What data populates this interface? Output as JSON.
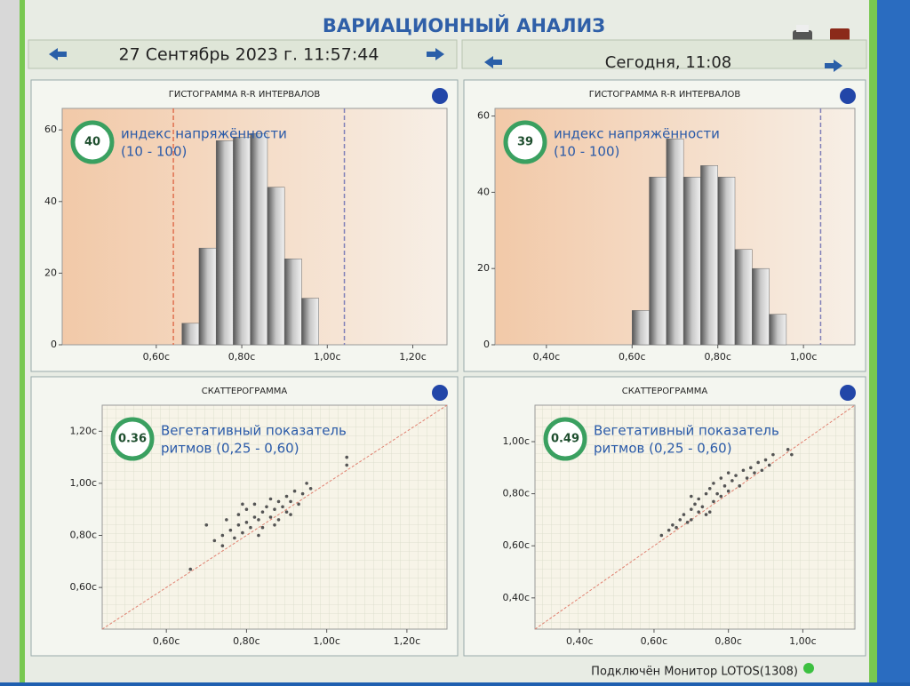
{
  "header": {
    "title": "ВАРИАЦИОННЫЙ АНАЛИЗ",
    "left_date": "27 Сентябрь 2023 г. 11:57:44",
    "right_date": "Сегодня, 11:08"
  },
  "status": "Подключён Монитор LOTOS(1308)",
  "chart_data": [
    {
      "type": "histogram",
      "title": "ГИСТОГРАММА R-R ИНТЕРВАЛОВ",
      "index": {
        "value": 40,
        "label": "индекс напряжённости",
        "range": "(10 - 100)"
      },
      "bins": [
        0.66,
        0.7,
        0.74,
        0.78,
        0.82,
        0.86,
        0.9,
        0.94,
        0.98
      ],
      "counts": [
        6,
        27,
        57,
        58,
        59,
        44,
        24,
        13
      ],
      "xlim": [
        0.38,
        1.28
      ],
      "ylim": [
        0,
        66
      ],
      "xticks": [
        {
          "value": 0.6,
          "label": "0,60с"
        },
        {
          "value": 0.8,
          "label": "0,80с"
        },
        {
          "value": 1.0,
          "label": "1,00с"
        },
        {
          "value": 1.2,
          "label": "1,20с"
        }
      ],
      "yticks": [
        0,
        20,
        40,
        60
      ],
      "reference_lines": [
        {
          "value": 0.64,
          "color": "#e07050"
        },
        {
          "value": 1.04,
          "color": "#8080b8"
        }
      ]
    },
    {
      "type": "histogram",
      "title": "ГИСТОГРАММА R-R ИНТЕРВАЛОВ",
      "index": {
        "value": 39,
        "label": "индекс напряжённости",
        "range": "(10 - 100)"
      },
      "bins": [
        0.6,
        0.64,
        0.68,
        0.72,
        0.76,
        0.8,
        0.84,
        0.88,
        0.92,
        0.96
      ],
      "counts": [
        9,
        44,
        54,
        44,
        47,
        44,
        25,
        20,
        8
      ],
      "xlim": [
        0.28,
        1.12
      ],
      "ylim": [
        0,
        62
      ],
      "xticks": [
        {
          "value": 0.4,
          "label": "0,40с"
        },
        {
          "value": 0.6,
          "label": "0,60с"
        },
        {
          "value": 0.8,
          "label": "0,80с"
        },
        {
          "value": 1.0,
          "label": "1,00с"
        }
      ],
      "yticks": [
        0,
        20,
        40,
        60
      ],
      "reference_lines": [
        {
          "value": 1.04,
          "color": "#8080b8"
        }
      ]
    },
    {
      "type": "scatter",
      "title": "СКАТТЕРОГРАММА",
      "index": {
        "value": 0.36,
        "label": "Вегетативный показатель",
        "range": "ритмов (0,25 - 0,60)"
      },
      "color": "#555555",
      "x": [
        0.7,
        0.72,
        0.74,
        0.75,
        0.76,
        0.77,
        0.78,
        0.78,
        0.79,
        0.8,
        0.8,
        0.81,
        0.82,
        0.82,
        0.83,
        0.84,
        0.84,
        0.85,
        0.86,
        0.86,
        0.87,
        0.88,
        0.88,
        0.89,
        0.9,
        0.9,
        0.91,
        0.92,
        0.93,
        0.94,
        0.95,
        0.96,
        0.74,
        0.79,
        0.83,
        0.87,
        0.91,
        0.66,
        1.05,
        1.05
      ],
      "values": [
        0.84,
        0.78,
        0.8,
        0.86,
        0.82,
        0.79,
        0.84,
        0.88,
        0.81,
        0.85,
        0.9,
        0.83,
        0.87,
        0.92,
        0.86,
        0.89,
        0.83,
        0.91,
        0.87,
        0.94,
        0.9,
        0.86,
        0.93,
        0.91,
        0.95,
        0.89,
        0.93,
        0.97,
        0.92,
        0.96,
        1.0,
        0.98,
        0.76,
        0.92,
        0.8,
        0.84,
        0.88,
        0.67,
        1.07,
        1.1
      ],
      "xlim": [
        0.44,
        1.3
      ],
      "ylim": [
        0.44,
        1.3
      ],
      "xticks": [
        {
          "value": 0.6,
          "label": "0,60с"
        },
        {
          "value": 0.8,
          "label": "0,80с"
        },
        {
          "value": 1.0,
          "label": "1,00с"
        },
        {
          "value": 1.2,
          "label": "1,20с"
        }
      ],
      "yticks": [
        {
          "value": 0.6,
          "label": "0,60с"
        },
        {
          "value": 0.8,
          "label": "0,80с"
        },
        {
          "value": 1.0,
          "label": "1,00с"
        },
        {
          "value": 1.2,
          "label": "1,20с"
        }
      ]
    },
    {
      "type": "scatter",
      "title": "СКАТТЕРОГРАММА",
      "index": {
        "value": 0.49,
        "label": "Вегетативный показатель",
        "range": "ритмов (0,25 - 0,60)"
      },
      "color": "#555555",
      "x": [
        0.62,
        0.64,
        0.65,
        0.66,
        0.67,
        0.68,
        0.69,
        0.7,
        0.7,
        0.71,
        0.72,
        0.72,
        0.73,
        0.74,
        0.74,
        0.75,
        0.76,
        0.76,
        0.77,
        0.78,
        0.78,
        0.79,
        0.8,
        0.8,
        0.81,
        0.82,
        0.83,
        0.84,
        0.85,
        0.86,
        0.87,
        0.88,
        0.89,
        0.9,
        0.91,
        0.92,
        0.96,
        0.97,
        0.7,
        0.75
      ],
      "values": [
        0.64,
        0.66,
        0.68,
        0.67,
        0.7,
        0.72,
        0.69,
        0.74,
        0.7,
        0.76,
        0.73,
        0.78,
        0.75,
        0.8,
        0.72,
        0.82,
        0.77,
        0.84,
        0.8,
        0.86,
        0.79,
        0.83,
        0.88,
        0.81,
        0.85,
        0.87,
        0.83,
        0.89,
        0.86,
        0.9,
        0.88,
        0.92,
        0.89,
        0.93,
        0.91,
        0.95,
        0.97,
        0.95,
        0.79,
        0.73
      ],
      "xlim": [
        0.28,
        1.14
      ],
      "ylim": [
        0.28,
        1.14
      ],
      "xticks": [
        {
          "value": 0.4,
          "label": "0,40с"
        },
        {
          "value": 0.6,
          "label": "0,60с"
        },
        {
          "value": 0.8,
          "label": "0,80с"
        },
        {
          "value": 1.0,
          "label": "1,00с"
        }
      ],
      "yticks": [
        {
          "value": 0.4,
          "label": "0,40с"
        },
        {
          "value": 0.6,
          "label": "0,60с"
        },
        {
          "value": 0.8,
          "label": "0,80с"
        },
        {
          "value": 1.0,
          "label": "1,00с"
        }
      ]
    }
  ]
}
